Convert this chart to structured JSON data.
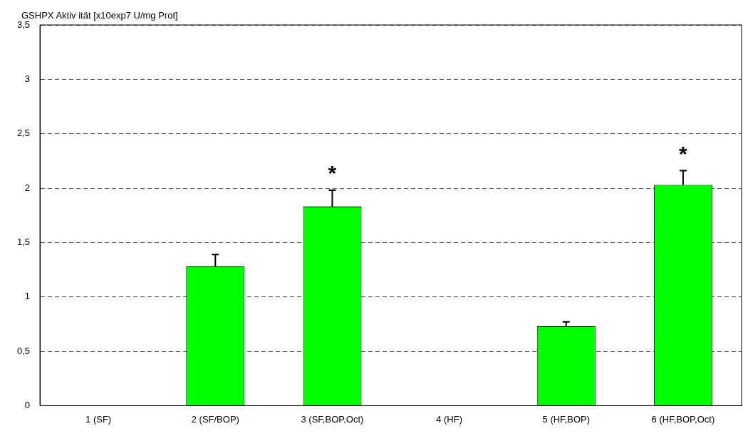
{
  "chart_data": {
    "type": "bar",
    "ylabel": "GSHPX Aktiv ität [x10exp7 U/mg Prot]",
    "categories": [
      "1 (SF)",
      "2 (SF/BOP)",
      "3 (SF,BOP,Oct)",
      "4 (HF)",
      "5 (HF,BOP)",
      "6 (HF,BOP,Oct)"
    ],
    "values": [
      0,
      1.28,
      1.83,
      0,
      0.73,
      2.03
    ],
    "errors": [
      null,
      [
        1.28,
        1.39
      ],
      [
        1.83,
        1.98
      ],
      null,
      [
        0.73,
        0.77
      ],
      [
        2.03,
        2.16
      ]
    ],
    "color": "#00ff00",
    "ylim": [
      0,
      3.5
    ],
    "yticks": [
      0,
      {
        "value": 0.5,
        "label": "0,5"
      },
      1,
      {
        "value": 1.5,
        "label": "1,5"
      },
      2,
      {
        "value": 2.5,
        "label": "2,5"
      },
      3,
      {
        "value": 3.5,
        "label": "3,5"
      }
    ],
    "grid": "y",
    "line_style": "dashed",
    "legend": false,
    "annotations": [
      "*",
      "*"
    ]
  }
}
